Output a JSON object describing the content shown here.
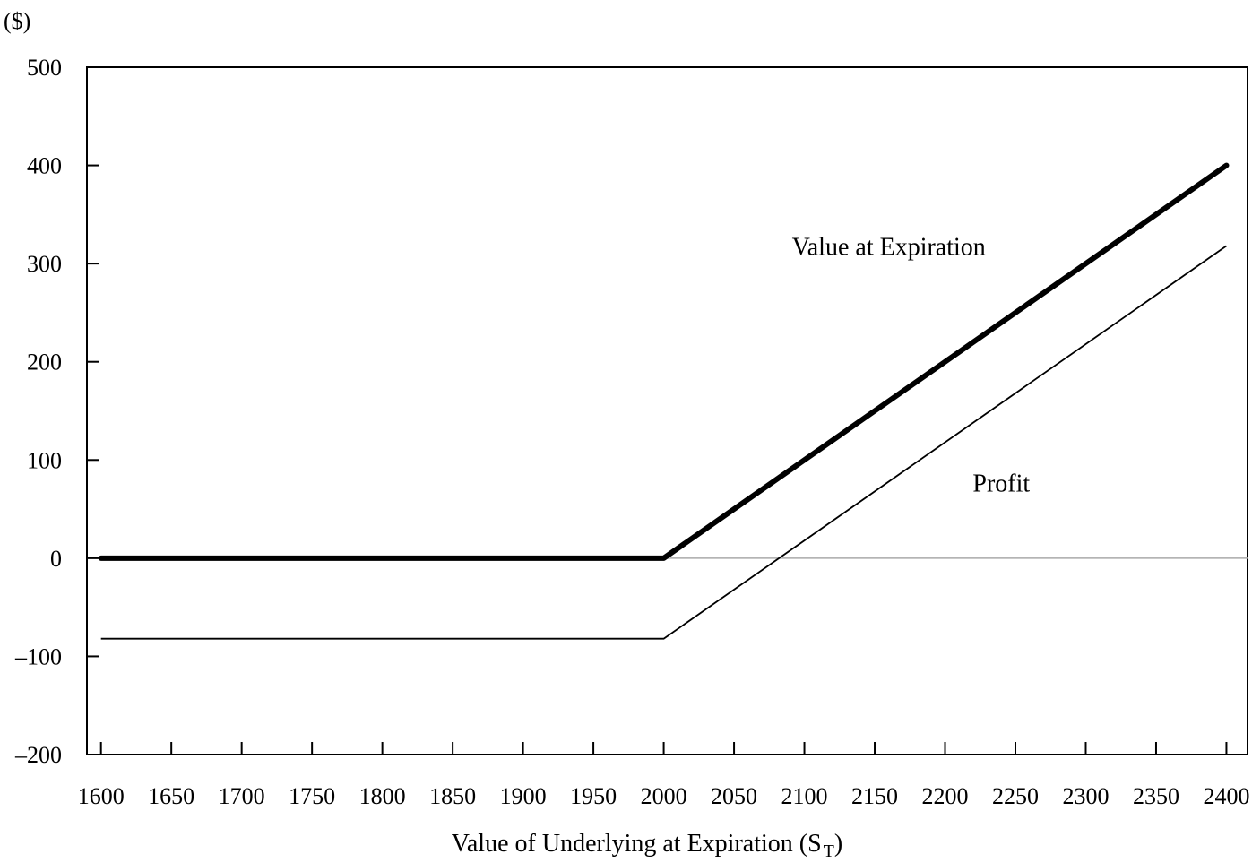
{
  "chart_data": {
    "type": "line",
    "title": "",
    "unit_label": "($)",
    "xlabel": "Value of Underlying at Expiration (S",
    "xlabel_sub": "T",
    "xlabel_close": ")",
    "ylabel": "",
    "xlim": [
      1590,
      2415
    ],
    "ylim": [
      -200,
      500
    ],
    "x_ticks": [
      1600,
      1650,
      1700,
      1750,
      1800,
      1850,
      1900,
      1950,
      2000,
      2050,
      2100,
      2150,
      2200,
      2250,
      2300,
      2350,
      2400
    ],
    "y_ticks": [
      500,
      400,
      300,
      200,
      100,
      0,
      -100,
      -200
    ],
    "y_tick_labels": [
      "500",
      "400",
      "300",
      "200",
      "100",
      "0",
      "–100",
      "–200"
    ],
    "zero_line": true,
    "grid": false,
    "legend": "none",
    "series": [
      {
        "name": "Value at Expiration",
        "x": [
          1600,
          2000,
          2400
        ],
        "y": [
          0,
          0,
          400
        ],
        "color": "#000000",
        "style": "thick"
      },
      {
        "name": "Profit",
        "x": [
          1600,
          2000,
          2400
        ],
        "y": [
          -82,
          -82,
          318
        ],
        "color": "#000000",
        "style": "thin"
      }
    ],
    "annotations": [
      {
        "text": "Value at Expiration",
        "x": 2160,
        "y": 318,
        "series": 0
      },
      {
        "text": "Profit",
        "x": 2240,
        "y": 77,
        "series": 1
      }
    ]
  }
}
